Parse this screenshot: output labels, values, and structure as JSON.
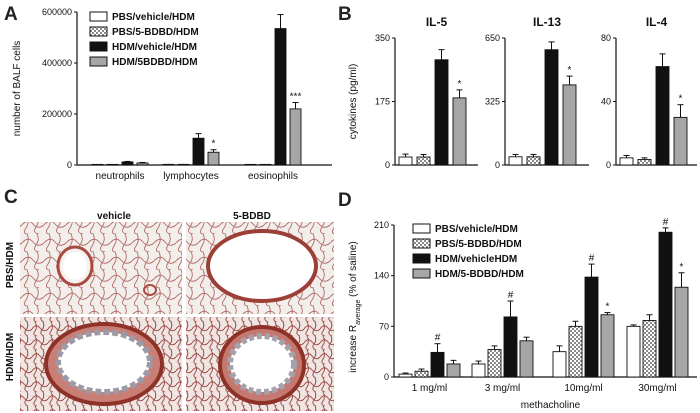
{
  "panel_letters": {
    "A": "A",
    "B": "B",
    "C": "C",
    "D": "D"
  },
  "legend_groups": [
    "PBS/vehicle/HDM",
    "PBS/5-BDBD/HDM",
    "HDM/vehicle/HDM",
    "HDM/5BDBD/HDM"
  ],
  "legend_groups_d": [
    "PBS/vehicle/HDM",
    "PBS/5-BDBD/HDM",
    "HDM/vehicleHDM",
    "HDM/5-BDBD/HDM"
  ],
  "colors": {
    "g1": "#ffffff",
    "g2": "checkered",
    "g3": "#111111",
    "g4": "#a6a6a6",
    "axis": "#111111"
  },
  "histology": {
    "col_labels": [
      "vehicle",
      "5-BDBD"
    ],
    "row_labels": [
      "PBS/HDM",
      "HDM/HDM"
    ]
  },
  "chart_data": [
    {
      "id": "A",
      "type": "bar",
      "title": "",
      "xlabel": "",
      "ylabel": "number of BALF cells",
      "ylim": [
        0,
        600000
      ],
      "yticks": [
        "0",
        "200000",
        "400000",
        "600000"
      ],
      "categories": [
        "neutrophils",
        "lymphocytes",
        "eosinophils"
      ],
      "series": [
        {
          "name": "PBS/vehicle/HDM",
          "values": [
            1000,
            2000,
            1000
          ],
          "errors": [
            200,
            300,
            200
          ]
        },
        {
          "name": "PBS/5-BDBD/HDM",
          "values": [
            1000,
            2000,
            1000
          ],
          "errors": [
            200,
            300,
            200
          ]
        },
        {
          "name": "HDM/vehicle/HDM",
          "values": [
            12000,
            105000,
            535000
          ],
          "errors": [
            2000,
            18000,
            55000
          ]
        },
        {
          "name": "HDM/5BDBD/HDM",
          "values": [
            8000,
            50000,
            220000
          ],
          "errors": [
            2000,
            10000,
            25000
          ]
        }
      ],
      "annotations": [
        "",
        "*",
        "***"
      ]
    },
    {
      "id": "B1",
      "type": "bar",
      "title": "IL-5",
      "ylabel": "cytokines (pg/ml)",
      "ylim": [
        0,
        350
      ],
      "yticks": [
        "0",
        "175",
        "350"
      ],
      "series": [
        {
          "name": "PBS/vehicle/HDM",
          "values": [
            22
          ],
          "errors": [
            8
          ]
        },
        {
          "name": "PBS/5-BDBD/HDM",
          "values": [
            22
          ],
          "errors": [
            7
          ]
        },
        {
          "name": "HDM/vehicle/HDM",
          "values": [
            290
          ],
          "errors": [
            28
          ]
        },
        {
          "name": "HDM/5BDBD/HDM",
          "values": [
            185
          ],
          "errors": [
            22
          ]
        }
      ],
      "annotations": [
        "*"
      ]
    },
    {
      "id": "B2",
      "type": "bar",
      "title": "IL-13",
      "ylabel": "",
      "ylim": [
        0,
        650
      ],
      "yticks": [
        "0",
        "325",
        "650"
      ],
      "series": [
        {
          "name": "PBS/vehicle/HDM",
          "values": [
            42
          ],
          "errors": [
            12
          ]
        },
        {
          "name": "PBS/5-BDBD/HDM",
          "values": [
            42
          ],
          "errors": [
            12
          ]
        },
        {
          "name": "HDM/vehicle/HDM",
          "values": [
            590
          ],
          "errors": [
            40
          ]
        },
        {
          "name": "HDM/5BDBD/HDM",
          "values": [
            410
          ],
          "errors": [
            45
          ]
        }
      ],
      "annotations": [
        "*"
      ]
    },
    {
      "id": "B3",
      "type": "bar",
      "title": "IL-4",
      "ylabel": "",
      "ylim": [
        0,
        80
      ],
      "yticks": [
        "0",
        "40",
        "80"
      ],
      "series": [
        {
          "name": "PBS/vehicle/HDM",
          "values": [
            4.5
          ],
          "errors": [
            1.5
          ]
        },
        {
          "name": "PBS/5-BDBD/HDM",
          "values": [
            3.5
          ],
          "errors": [
            1
          ]
        },
        {
          "name": "HDM/vehicle/HDM",
          "values": [
            62
          ],
          "errors": [
            8
          ]
        },
        {
          "name": "HDM/5BDBD/HDM",
          "values": [
            30
          ],
          "errors": [
            8
          ]
        }
      ],
      "annotations": [
        "*"
      ]
    },
    {
      "id": "D",
      "type": "bar",
      "title": "",
      "xlabel": "methacholine",
      "ylabel_main": "increase R",
      "ylabel_sub": "average",
      "ylabel_tail": " (% of saline)",
      "ylim": [
        0,
        210
      ],
      "yticks": [
        "0",
        "70",
        "140",
        "210"
      ],
      "categories": [
        "1 mg/ml",
        "3 mg/ml",
        "10mg/ml",
        "30mg/ml"
      ],
      "series": [
        {
          "name": "PBS/vehicle/HDM",
          "values": [
            4,
            18,
            35,
            70
          ],
          "errors": [
            1.5,
            4,
            8,
            2
          ]
        },
        {
          "name": "PBS/5-BDBD/HDM",
          "values": [
            8,
            38,
            70,
            78
          ],
          "errors": [
            3,
            5,
            7,
            8
          ]
        },
        {
          "name": "HDM/vehicleHDM",
          "values": [
            34,
            83,
            138,
            200
          ],
          "errors": [
            12,
            22,
            18,
            6
          ]
        },
        {
          "name": "HDM/5-BDBD/HDM",
          "values": [
            18,
            50,
            86,
            124
          ],
          "errors": [
            5,
            5,
            3,
            20
          ]
        }
      ],
      "annotations": [
        [
          "",
          "",
          "#",
          ""
        ],
        [
          "",
          "",
          "#",
          ""
        ],
        [
          "",
          "",
          "#",
          "*"
        ],
        [
          "",
          "",
          "#",
          "*"
        ]
      ]
    }
  ]
}
